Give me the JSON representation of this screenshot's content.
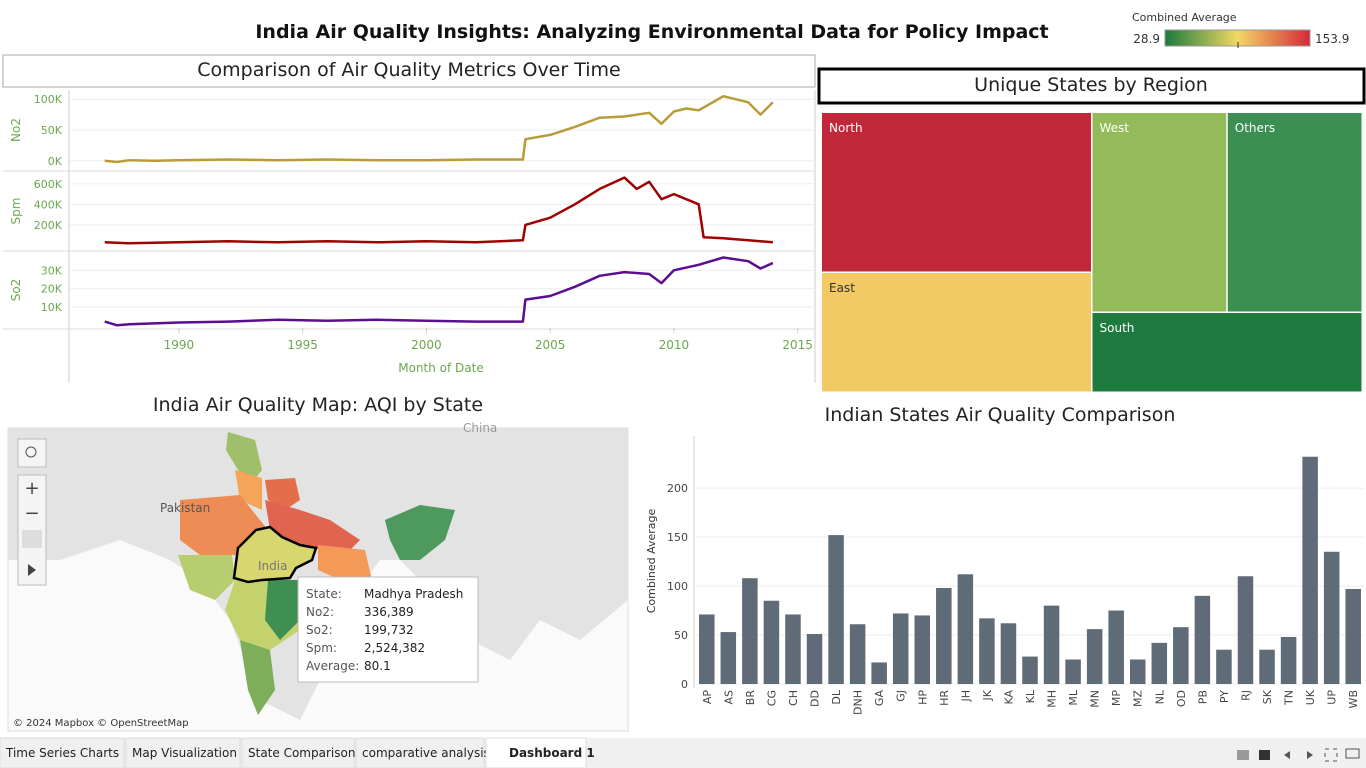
{
  "title": "India Air Quality Insights: Analyzing Environmental Data for Policy Impact",
  "legend": {
    "title": "Combined Average",
    "min": 28.9,
    "max": 153.9,
    "colors": [
      "#1a7a3c",
      "#f2d864",
      "#d6283a"
    ]
  },
  "chart_data": [
    {
      "type": "line",
      "title": "Comparison of Air Quality Metrics Over Time",
      "x_label": "Month of Date",
      "xlim": [
        1985.6,
        2015.7
      ],
      "xticks": [
        1990,
        1995,
        2000,
        2005,
        2010,
        2015
      ],
      "grid": true,
      "series": [
        {
          "name": "No2",
          "color": "#b89c3a",
          "ylim": [
            -15000,
            115000
          ],
          "yticks": [
            {
              "value": 0,
              "label": "0K"
            },
            {
              "value": 50000,
              "label": "50K"
            },
            {
              "value": 100000,
              "label": "100K"
            }
          ],
          "x": [
            1987,
            1987.5,
            1988,
            1989,
            1990,
            1992,
            1994,
            1996,
            1998,
            2000,
            2002,
            2003.9,
            2004,
            2005,
            2006,
            2007,
            2008,
            2009,
            2009.5,
            2010,
            2010.5,
            2011,
            2012,
            2013,
            2013.5,
            2014
          ],
          "values": [
            0,
            -2000,
            1000,
            0,
            1000,
            2000,
            1000,
            2000,
            1000,
            1000,
            2000,
            2000,
            35000,
            42000,
            55000,
            70000,
            72000,
            78000,
            60000,
            80000,
            85000,
            82000,
            105000,
            95000,
            75000,
            95000
          ]
        },
        {
          "name": "Spm",
          "color": "#a00000",
          "ylim": [
            -45000,
            715000
          ],
          "yticks": [
            {
              "value": 200000,
              "label": "200K"
            },
            {
              "value": 400000,
              "label": "400K"
            },
            {
              "value": 600000,
              "label": "600K"
            }
          ],
          "x": [
            1987,
            1988,
            1990,
            1992,
            1994,
            1996,
            1998,
            2000,
            2002,
            2003.9,
            2004,
            2005,
            2006,
            2007,
            2008,
            2008.5,
            2009,
            2009.5,
            2010,
            2011,
            2011.2,
            2012,
            2013,
            2014
          ],
          "values": [
            30000,
            20000,
            30000,
            40000,
            30000,
            40000,
            30000,
            40000,
            30000,
            50000,
            200000,
            270000,
            400000,
            550000,
            660000,
            550000,
            620000,
            450000,
            500000,
            400000,
            80000,
            70000,
            50000,
            30000
          ]
        },
        {
          "name": "So2",
          "color": "#5a0f8f",
          "ylim": [
            -1500,
            40000
          ],
          "yticks": [
            {
              "value": 10000,
              "label": "10K"
            },
            {
              "value": 20000,
              "label": "20K"
            },
            {
              "value": 30000,
              "label": "30K"
            }
          ],
          "x": [
            1987,
            1987.5,
            1988,
            1990,
            1992,
            1994,
            1996,
            1998,
            2000,
            2002,
            2003.9,
            2004,
            2005,
            2006,
            2007,
            2008,
            2009,
            2009.5,
            2010,
            2011,
            2012,
            2013,
            2013.5,
            2014
          ],
          "values": [
            2000,
            0,
            500,
            1500,
            2000,
            3000,
            2500,
            3000,
            2500,
            2000,
            2000,
            14000,
            16000,
            21000,
            27000,
            29000,
            28000,
            23000,
            30000,
            33000,
            37000,
            35000,
            31000,
            34000
          ]
        }
      ]
    },
    {
      "type": "treemap",
      "title": "Unique States by Region",
      "categories": [
        "North",
        "East",
        "West",
        "Others",
        "South"
      ],
      "values": [
        8,
        6,
        5,
        5,
        4
      ],
      "colors": [
        "#c0283a",
        "#f2c962",
        "#94bb5a",
        "#3b8f52",
        "#1e7a3e"
      ]
    },
    {
      "type": "bar",
      "title": "Indian States Air Quality Comparison",
      "y_label": "Combined Average",
      "color": "#5f6b77",
      "categories": [
        "AP",
        "AS",
        "BR",
        "CG",
        "CH",
        "DD",
        "DL",
        "DNH",
        "GA",
        "GJ",
        "HP",
        "HR",
        "JH",
        "JK",
        "KA",
        "KL",
        "MH",
        "ML",
        "MN",
        "MP",
        "MZ",
        "NL",
        "OD",
        "PB",
        "PY",
        "RJ",
        "SK",
        "TN",
        "UK",
        "UP",
        "WB"
      ],
      "values": [
        71,
        53,
        108,
        85,
        71,
        51,
        152,
        61,
        22,
        72,
        70,
        98,
        112,
        67,
        62,
        28,
        80,
        25,
        56,
        75,
        25,
        42,
        58,
        90,
        35,
        110,
        35,
        48,
        232,
        135,
        97
      ],
      "ylim": [
        0,
        245
      ],
      "yticks": [
        0,
        50,
        100,
        150,
        200
      ],
      "grid": true
    }
  ],
  "map": {
    "title": "India Air Quality Map: AQI by State",
    "labels": [
      "Pakistan",
      "India",
      "China"
    ],
    "attribution": "© 2024 Mapbox © OpenStreetMap",
    "tooltip": [
      {
        "label": "State:",
        "value": "Madhya Pradesh"
      },
      {
        "label": "No2:",
        "value": "336,389"
      },
      {
        "label": "So2:",
        "value": "199,732"
      },
      {
        "label": "Spm:",
        "value": "2,524,382"
      },
      {
        "label": "Average:",
        "value": "80.1"
      }
    ]
  },
  "tabs": [
    "Time Series Charts",
    "Map Visualization",
    "State Comparison",
    "comparative analysis",
    "Dashboard 1"
  ]
}
